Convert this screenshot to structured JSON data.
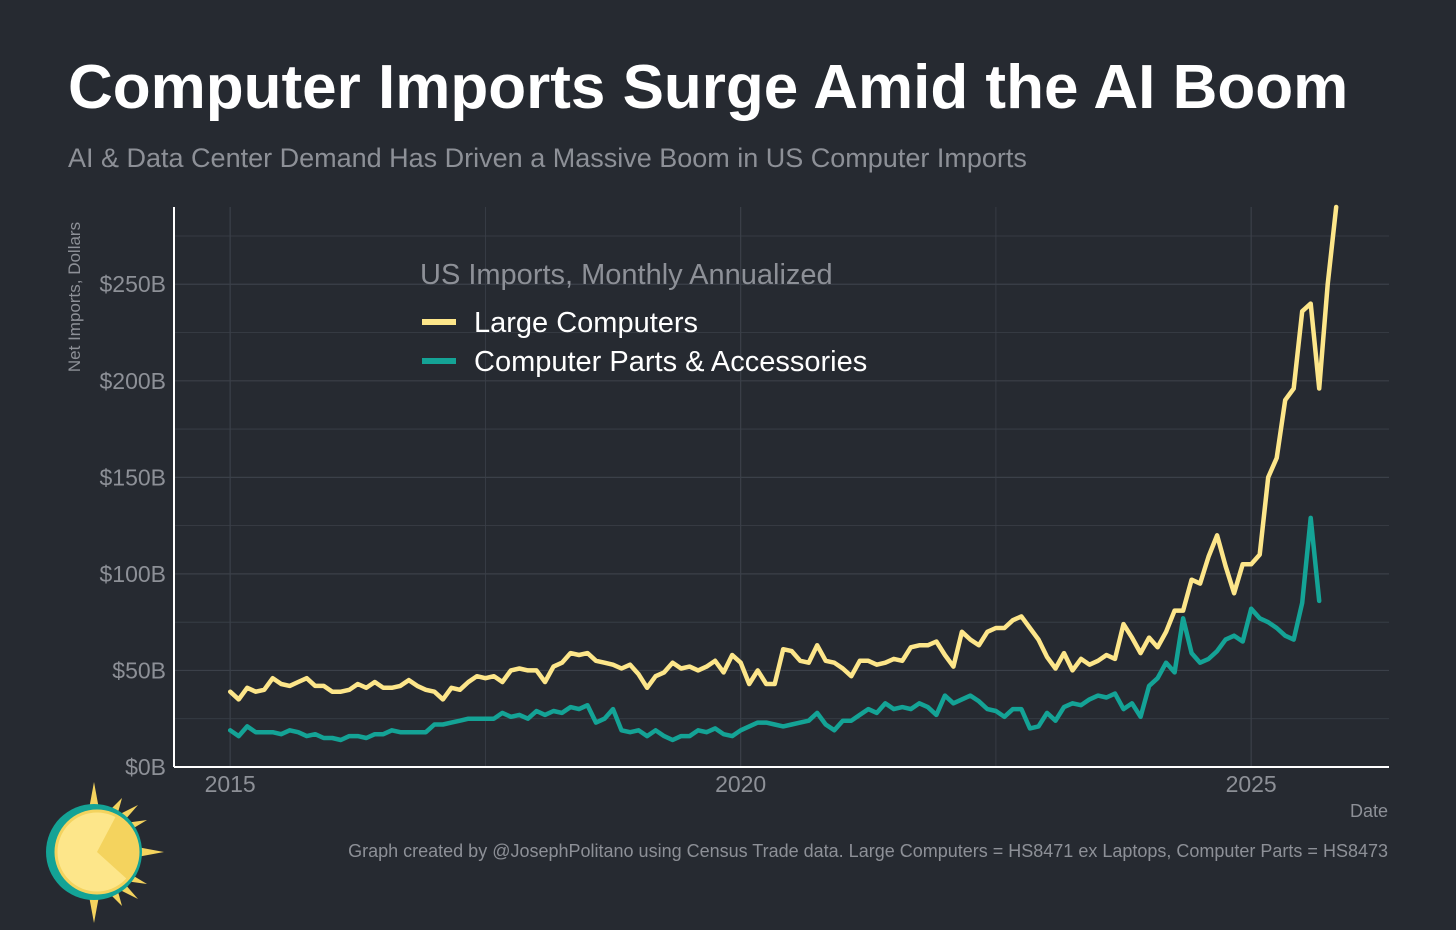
{
  "header": {
    "title": "Computer Imports Surge Amid the AI Boom",
    "subtitle": "AI & Data Center Demand Has Driven a Massive Boom in US Computer Imports"
  },
  "footer": {
    "credit": "Graph created by @JosephPolitano using Census Trade data. Large Computers = HS8471 ex Laptops, Computer Parts = HS8473"
  },
  "colors": {
    "background": "#262a31",
    "large_computers": "#fde68a",
    "computer_parts": "#14a396",
    "grid": "#3b4049",
    "axis": "#ffffff",
    "muted_text": "#8d9097"
  },
  "chart_data": {
    "type": "line",
    "title": "US Imports, Monthly Annualized",
    "xlabel": "Date",
    "ylabel": "Net Imports, Dollars",
    "xlim": [
      2014.45,
      2026.35
    ],
    "ylim": [
      0,
      290
    ],
    "y_ticks": [
      0,
      50,
      100,
      150,
      200,
      250
    ],
    "y_tick_labels": [
      "$0B",
      "$50B",
      "$100B",
      "$150B",
      "$200B",
      "$250B"
    ],
    "x_ticks": [
      2015,
      2020,
      2025
    ],
    "x_tick_labels": [
      "2015",
      "2020",
      "2025"
    ],
    "legend_position": "top-left",
    "grid": true,
    "x_start": 2015.0,
    "x_step_months": 1,
    "series": [
      {
        "name": "Large Computers",
        "color": "#fde68a",
        "values": [
          39,
          35,
          41,
          39,
          40,
          46,
          43,
          42,
          44,
          46,
          42,
          42,
          39,
          39,
          40,
          43,
          41,
          44,
          41,
          41,
          42,
          45,
          42,
          40,
          39,
          35,
          41,
          40,
          44,
          47,
          46,
          47,
          44,
          50,
          51,
          50,
          50,
          44,
          52,
          54,
          59,
          58,
          59,
          55,
          54,
          53,
          51,
          53,
          48,
          41,
          47,
          49,
          54,
          51,
          52,
          50,
          52,
          55,
          49,
          58,
          54,
          43,
          50,
          43,
          43,
          61,
          60,
          55,
          54,
          63,
          55,
          54,
          51,
          47,
          55,
          55,
          53,
          54,
          56,
          55,
          62,
          63,
          63,
          65,
          58,
          52,
          70,
          66,
          63,
          70,
          72,
          72,
          76,
          78,
          72,
          66,
          57,
          51,
          59,
          50,
          56,
          53,
          55,
          58,
          56,
          74,
          67,
          59,
          67,
          62,
          70,
          81,
          81,
          97,
          95,
          109,
          120,
          104,
          90,
          105,
          105,
          110,
          150,
          160,
          190,
          196,
          236,
          240,
          196,
          250,
          290
        ]
      },
      {
        "name": "Computer Parts & Accessories",
        "color": "#14a396",
        "values": [
          19,
          16,
          21,
          18,
          18,
          18,
          17,
          19,
          18,
          16,
          17,
          15,
          15,
          14,
          16,
          16,
          15,
          17,
          17,
          19,
          18,
          18,
          18,
          18,
          22,
          22,
          23,
          24,
          25,
          25,
          25,
          25,
          28,
          26,
          27,
          25,
          29,
          27,
          29,
          28,
          31,
          30,
          32,
          23,
          25,
          30,
          19,
          18,
          19,
          16,
          19,
          16,
          14,
          16,
          16,
          19,
          18,
          20,
          17,
          16,
          19,
          21,
          23,
          23,
          22,
          21,
          22,
          23,
          24,
          28,
          22,
          19,
          24,
          24,
          27,
          30,
          28,
          33,
          30,
          31,
          30,
          33,
          31,
          27,
          37,
          33,
          35,
          37,
          34,
          30,
          29,
          26,
          30,
          30,
          20,
          21,
          28,
          24,
          31,
          33,
          32,
          35,
          37,
          36,
          38,
          30,
          33,
          26,
          42,
          46,
          54,
          49,
          77,
          59,
          54,
          56,
          60,
          66,
          68,
          65,
          82,
          77,
          75,
          72,
          68,
          66,
          85,
          129,
          86
        ]
      }
    ]
  }
}
